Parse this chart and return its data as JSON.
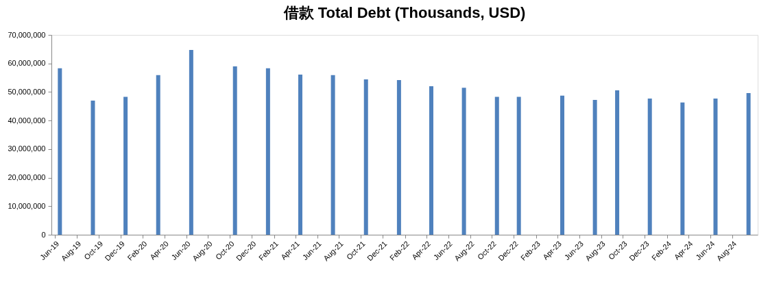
{
  "chart_data": {
    "type": "bar",
    "title": "借款 Total Debt (Thousands, USD)",
    "x": [
      "2019-06-15",
      "2019-09-15",
      "2019-12-15",
      "2020-03-15",
      "2020-06-15",
      "2020-10-15",
      "2021-01-15",
      "2021-04-15",
      "2021-07-15",
      "2021-10-15",
      "2022-01-15",
      "2022-04-15",
      "2022-07-15",
      "2022-10-15",
      "2022-12-15",
      "2023-04-15",
      "2023-07-15",
      "2023-09-15",
      "2023-12-15",
      "2024-03-15",
      "2024-06-15",
      "2024-09-15"
    ],
    "values": [
      58300000,
      47000000,
      48300000,
      55900000,
      64700000,
      59000000,
      58300000,
      56100000,
      55900000,
      54400000,
      54200000,
      52000000,
      51500000,
      48300000,
      48300000,
      48700000,
      47200000,
      50600000,
      47700000,
      46300000,
      47700000,
      49600000
    ],
    "color": "#4f81bd",
    "xlim": [
      "2019-06",
      "2024-10"
    ],
    "xticks": [
      {
        "value": "2019-06",
        "label": "Jun-19"
      },
      {
        "value": "2019-08",
        "label": "Aug-19"
      },
      {
        "value": "2019-10",
        "label": "Oct-19"
      },
      {
        "value": "2019-12",
        "label": "Dec-19"
      },
      {
        "value": "2020-02",
        "label": "Feb-20"
      },
      {
        "value": "2020-04",
        "label": "Apr-20"
      },
      {
        "value": "2020-06",
        "label": "Jun-20"
      },
      {
        "value": "2020-08",
        "label": "Aug-20"
      },
      {
        "value": "2020-10",
        "label": "Oct-20"
      },
      {
        "value": "2020-12",
        "label": "Dec-20"
      },
      {
        "value": "2021-02",
        "label": "Feb-21"
      },
      {
        "value": "2021-04",
        "label": "Apr-21"
      },
      {
        "value": "2021-06",
        "label": "Jun-21"
      },
      {
        "value": "2021-08",
        "label": "Aug-21"
      },
      {
        "value": "2021-10",
        "label": "Oct-21"
      },
      {
        "value": "2021-12",
        "label": "Dec-21"
      },
      {
        "value": "2022-02",
        "label": "Feb-22"
      },
      {
        "value": "2022-04",
        "label": "Apr-22"
      },
      {
        "value": "2022-06",
        "label": "Jun-22"
      },
      {
        "value": "2022-08",
        "label": "Aug-22"
      },
      {
        "value": "2022-10",
        "label": "Oct-22"
      },
      {
        "value": "2022-12",
        "label": "Dec-22"
      },
      {
        "value": "2023-02",
        "label": "Feb-23"
      },
      {
        "value": "2023-04",
        "label": "Apr-23"
      },
      {
        "value": "2023-06",
        "label": "Jun-23"
      },
      {
        "value": "2023-08",
        "label": "Aug-23"
      },
      {
        "value": "2023-10",
        "label": "Oct-23"
      },
      {
        "value": "2023-12",
        "label": "Dec-23"
      },
      {
        "value": "2024-02",
        "label": "Feb-24"
      },
      {
        "value": "2024-04",
        "label": "Apr-24"
      },
      {
        "value": "2024-06",
        "label": "Jun-24"
      },
      {
        "value": "2024-08",
        "label": "Aug-24"
      }
    ],
    "ylim": [
      0,
      70000000
    ],
    "yticks": [
      0,
      {
        "value": 10000000,
        "label": "10,000,000"
      },
      {
        "value": 20000000,
        "label": "20,000,000"
      },
      {
        "value": 30000000,
        "label": "30,000,000"
      },
      {
        "value": 40000000,
        "label": "40,000,000"
      },
      {
        "value": 50000000,
        "label": "50,000,000"
      },
      {
        "value": 60000000,
        "label": "60,000,000"
      },
      {
        "value": 70000000,
        "label": "70,000,000"
      }
    ],
    "grid": false
  }
}
